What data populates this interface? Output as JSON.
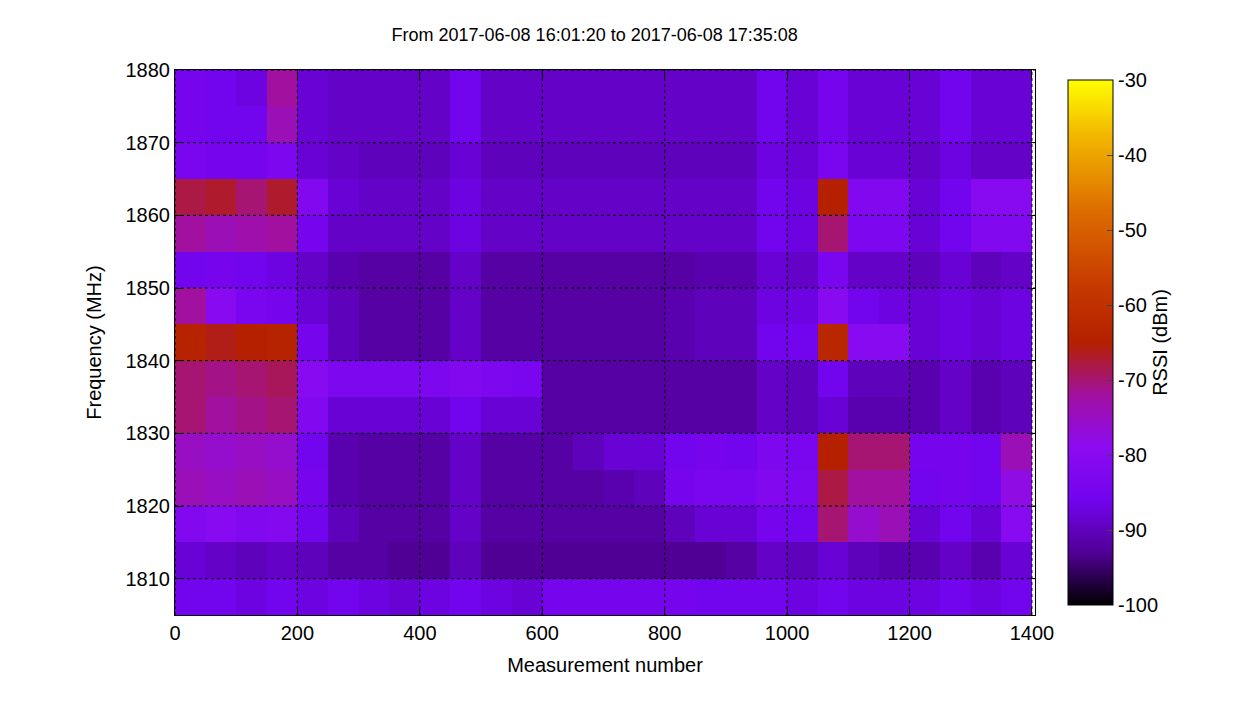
{
  "chart_data": {
    "type": "heatmap",
    "title": "From 2017-06-08 16:01:20 to 2017-06-08 17:35:08",
    "x_label": "Measurement number",
    "y_label": "Frequency (MHz)",
    "colorbar_label": "RSSI (dBm)",
    "grid": true,
    "xlim": [
      0,
      1405
    ],
    "ylim": [
      1805,
      1880
    ],
    "xticks": [
      0,
      200,
      400,
      600,
      800,
      1000,
      1200,
      1400
    ],
    "yticks": [
      1810,
      1820,
      1830,
      1840,
      1850,
      1860,
      1870,
      1880
    ],
    "zlim": [
      -100,
      -30
    ],
    "zticks": [
      -100,
      -90,
      -80,
      -70,
      -60,
      -50,
      -40,
      -30
    ],
    "x": [
      25,
      75,
      125,
      175,
      225,
      275,
      325,
      375,
      425,
      475,
      525,
      575,
      625,
      675,
      725,
      775,
      825,
      875,
      925,
      975,
      1025,
      1075,
      1125,
      1175,
      1225,
      1275,
      1325,
      1375
    ],
    "y": [
      1807.5,
      1812.5,
      1817.5,
      1822.5,
      1827.5,
      1832.5,
      1837.5,
      1842.5,
      1847.5,
      1852.5,
      1857.5,
      1862.5,
      1867.5,
      1872.5,
      1877.5
    ],
    "z": [
      [
        -86,
        -86,
        -87,
        -86,
        -87,
        -86,
        -87,
        -88,
        -87,
        -86,
        -87,
        -88,
        -85,
        -85,
        -85,
        -85,
        -85,
        -86,
        -86,
        -86,
        -87,
        -86,
        -87,
        -87,
        -87,
        -86,
        -87,
        -86
      ],
      [
        -88,
        -89,
        -90,
        -89,
        -90,
        -92,
        -92,
        -93,
        -93,
        -90,
        -93,
        -93,
        -93,
        -93,
        -93,
        -93,
        -93,
        -93,
        -92,
        -89,
        -90,
        -88,
        -90,
        -91,
        -91,
        -89,
        -91,
        -88
      ],
      [
        -82,
        -80,
        -82,
        -81,
        -86,
        -90,
        -92,
        -92,
        -92,
        -89,
        -92,
        -92,
        -92,
        -92,
        -92,
        -92,
        -90,
        -88,
        -88,
        -85,
        -86,
        -70,
        -76,
        -74,
        -88,
        -86,
        -88,
        -80
      ],
      [
        -74,
        -75,
        -74,
        -75,
        -85,
        -91,
        -92,
        -92,
        -92,
        -89,
        -92,
        -92,
        -92,
        -92,
        -91,
        -90,
        -85,
        -84,
        -84,
        -82,
        -83,
        -68,
        -72,
        -72,
        -86,
        -85,
        -86,
        -78
      ],
      [
        -75,
        -76,
        -75,
        -76,
        -86,
        -91,
        -92,
        -92,
        -92,
        -89,
        -92,
        -92,
        -92,
        -90,
        -88,
        -88,
        -86,
        -85,
        -86,
        -83,
        -84,
        -65,
        -70,
        -70,
        -85,
        -85,
        -86,
        -74
      ],
      [
        -70,
        -72,
        -71,
        -70,
        -82,
        -88,
        -88,
        -88,
        -88,
        -86,
        -88,
        -88,
        -92,
        -92,
        -92,
        -92,
        -92,
        -92,
        -92,
        -89,
        -90,
        -88,
        -91,
        -91,
        -91,
        -89,
        -91,
        -90
      ],
      [
        -70,
        -71,
        -70,
        -69,
        -80,
        -83,
        -83,
        -83,
        -83,
        -82,
        -83,
        -84,
        -92,
        -92,
        -92,
        -92,
        -92,
        -92,
        -92,
        -89,
        -90,
        -86,
        -90,
        -90,
        -91,
        -89,
        -91,
        -90
      ],
      [
        -64,
        -66,
        -65,
        -64,
        -85,
        -90,
        -92,
        -92,
        -92,
        -89,
        -92,
        -92,
        -92,
        -92,
        -92,
        -92,
        -91,
        -90,
        -90,
        -86,
        -86,
        -63,
        -80,
        -80,
        -88,
        -87,
        -88,
        -87
      ],
      [
        -72,
        -80,
        -84,
        -85,
        -88,
        -90,
        -92,
        -92,
        -92,
        -89,
        -92,
        -92,
        -92,
        -92,
        -92,
        -92,
        -91,
        -90,
        -90,
        -87,
        -87,
        -80,
        -86,
        -87,
        -88,
        -87,
        -88,
        -87
      ],
      [
        -86,
        -85,
        -86,
        -87,
        -89,
        -91,
        -92,
        -92,
        -92,
        -89,
        -92,
        -92,
        -92,
        -92,
        -92,
        -92,
        -92,
        -91,
        -91,
        -88,
        -89,
        -84,
        -89,
        -89,
        -90,
        -88,
        -90,
        -89
      ],
      [
        -72,
        -74,
        -73,
        -72,
        -85,
        -89,
        -89,
        -89,
        -89,
        -87,
        -89,
        -89,
        -89,
        -89,
        -89,
        -89,
        -89,
        -89,
        -89,
        -86,
        -87,
        -70,
        -83,
        -83,
        -88,
        -86,
        -82,
        -82
      ],
      [
        -68,
        -67,
        -70,
        -67,
        -82,
        -88,
        -89,
        -89,
        -89,
        -87,
        -89,
        -89,
        -89,
        -89,
        -89,
        -89,
        -89,
        -89,
        -89,
        -86,
        -87,
        -65,
        -82,
        -82,
        -88,
        -86,
        -80,
        -80
      ],
      [
        -84,
        -85,
        -85,
        -83,
        -88,
        -89,
        -90,
        -90,
        -90,
        -88,
        -90,
        -90,
        -90,
        -90,
        -90,
        -90,
        -90,
        -90,
        -90,
        -87,
        -88,
        -84,
        -88,
        -88,
        -89,
        -87,
        -89,
        -89
      ],
      [
        -85,
        -86,
        -86,
        -74,
        -88,
        -89,
        -89,
        -89,
        -89,
        -86,
        -89,
        -89,
        -89,
        -89,
        -89,
        -89,
        -89,
        -89,
        -89,
        -86,
        -88,
        -85,
        -88,
        -88,
        -88,
        -86,
        -88,
        -88
      ],
      [
        -85,
        -86,
        -87,
        -72,
        -88,
        -89,
        -89,
        -89,
        -89,
        -86,
        -89,
        -89,
        -89,
        -89,
        -89,
        -89,
        -89,
        -89,
        -89,
        -86,
        -88,
        -85,
        -88,
        -88,
        -88,
        -86,
        -88,
        -88
      ]
    ]
  }
}
